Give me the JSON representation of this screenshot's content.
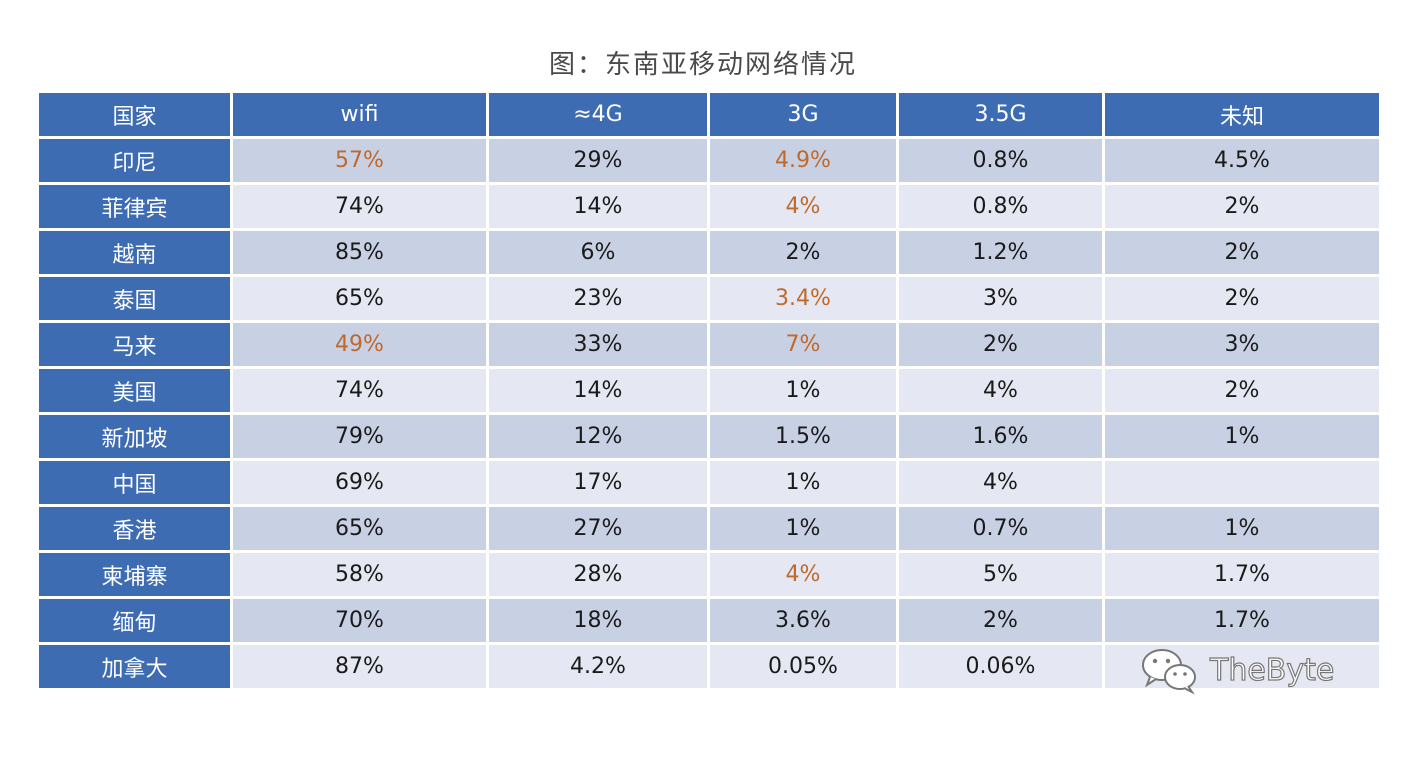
{
  "title": "图：东南亚移动网络情况",
  "highlight_color": "#c0692a",
  "header_color": "#3e6cb2",
  "table": {
    "headers": [
      "国家",
      "wifi",
      "≈4G",
      "3G",
      "3.5G",
      "未知"
    ],
    "rows": [
      {
        "country": "印尼",
        "cells": [
          "57%",
          "29%",
          "4.9%",
          "0.8%",
          "4.5%"
        ],
        "highlight": [
          true,
          false,
          true,
          false,
          false
        ]
      },
      {
        "country": "菲律宾",
        "cells": [
          "74%",
          "14%",
          "4%",
          "0.8%",
          "2%"
        ],
        "highlight": [
          false,
          false,
          true,
          false,
          false
        ]
      },
      {
        "country": "越南",
        "cells": [
          "85%",
          "6%",
          "2%",
          "1.2%",
          "2%"
        ],
        "highlight": [
          false,
          false,
          false,
          false,
          false
        ]
      },
      {
        "country": "泰国",
        "cells": [
          "65%",
          "23%",
          "3.4%",
          "3%",
          "2%"
        ],
        "highlight": [
          false,
          false,
          true,
          false,
          false
        ]
      },
      {
        "country": "马来",
        "cells": [
          "49%",
          "33%",
          "7%",
          "2%",
          "3%"
        ],
        "highlight": [
          true,
          false,
          true,
          false,
          false
        ]
      },
      {
        "country": "美国",
        "cells": [
          "74%",
          "14%",
          "1%",
          "4%",
          "2%"
        ],
        "highlight": [
          false,
          false,
          false,
          false,
          false
        ]
      },
      {
        "country": "新加坡",
        "cells": [
          "79%",
          "12%",
          "1.5%",
          "1.6%",
          "1%"
        ],
        "highlight": [
          false,
          false,
          false,
          false,
          false
        ]
      },
      {
        "country": "中国",
        "cells": [
          "69%",
          "17%",
          "1%",
          "4%",
          ""
        ],
        "highlight": [
          false,
          false,
          false,
          false,
          false
        ]
      },
      {
        "country": "香港",
        "cells": [
          "65%",
          "27%",
          "1%",
          "0.7%",
          "1%"
        ],
        "highlight": [
          false,
          false,
          false,
          false,
          false
        ]
      },
      {
        "country": "柬埔寨",
        "cells": [
          "58%",
          "28%",
          "4%",
          "5%",
          "1.7%"
        ],
        "highlight": [
          false,
          false,
          true,
          false,
          false
        ]
      },
      {
        "country": "缅甸",
        "cells": [
          "70%",
          "18%",
          "3.6%",
          "2%",
          "1.7%"
        ],
        "highlight": [
          false,
          false,
          false,
          false,
          false
        ]
      },
      {
        "country": "加拿大",
        "cells": [
          "87%",
          "4.2%",
          "0.05%",
          "0.06%",
          ""
        ],
        "highlight": [
          false,
          false,
          false,
          false,
          false
        ]
      }
    ]
  },
  "watermark": {
    "icon": "wechat-icon",
    "text": "TheByte"
  }
}
